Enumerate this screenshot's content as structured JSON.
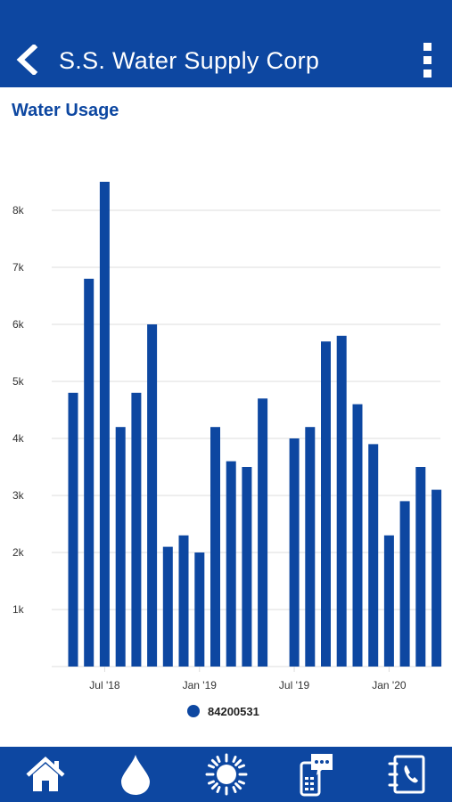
{
  "header": {
    "title": "S.S. Water Supply Corp",
    "back_icon": "chevron-left-icon",
    "menu_icon": "more-vertical-icon"
  },
  "section_title": "Water Usage",
  "chart_data": {
    "type": "bar",
    "title": "",
    "xlabel": "",
    "ylabel": "",
    "ylim": [
      0,
      8500
    ],
    "yticks": [
      1000,
      2000,
      3000,
      4000,
      5000,
      6000,
      7000,
      8000
    ],
    "ytick_labels": [
      "1k",
      "2k",
      "3k",
      "4k",
      "5k",
      "6k",
      "7k",
      "8k"
    ],
    "xticks": [
      {
        "label": "Jul '18",
        "at": "2018-07"
      },
      {
        "label": "Jan '19",
        "at": "2019-01"
      },
      {
        "label": "Jul '19",
        "at": "2019-07"
      },
      {
        "label": "Jan '20",
        "at": "2020-01"
      }
    ],
    "categories": [
      "2018-05",
      "2018-06",
      "2018-07",
      "2018-08",
      "2018-09",
      "2018-10",
      "2018-11",
      "2018-12",
      "2019-01",
      "2019-02",
      "2019-03",
      "2019-04",
      "2019-05",
      "2019-06",
      "2019-07",
      "2019-08",
      "2019-09",
      "2019-10",
      "2019-11",
      "2019-12",
      "2020-01",
      "2020-02",
      "2020-03",
      "2020-04"
    ],
    "series": [
      {
        "name": "84200531",
        "values": [
          4800,
          6800,
          8500,
          4200,
          4800,
          6000,
          2100,
          2300,
          2000,
          4200,
          3600,
          3500,
          4700,
          null,
          4000,
          4200,
          5700,
          5800,
          4600,
          3900,
          2300,
          2900,
          3500,
          3100
        ]
      }
    ],
    "grid": true,
    "legend": "bottom-center",
    "bar_color": "#0d47a1"
  },
  "bottom_nav": [
    {
      "icon": "home-icon"
    },
    {
      "icon": "water-drop-icon"
    },
    {
      "icon": "sun-icon"
    },
    {
      "icon": "message-icon"
    },
    {
      "icon": "contact-phone-icon"
    }
  ],
  "colors": {
    "primary": "#0d47a1",
    "grid": "#dddddd",
    "axis_text": "#333333"
  }
}
